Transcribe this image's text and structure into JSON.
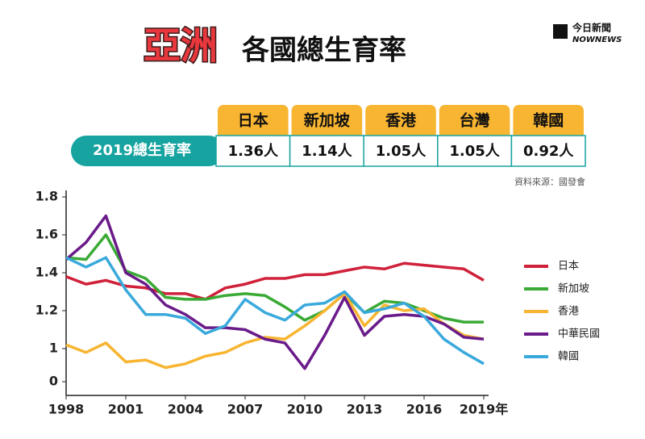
{
  "title_highlight": "亞洲",
  "title_rest": "各國總生育率",
  "logo": {
    "name": "今日新聞",
    "brand": "NOWNEWS"
  },
  "table": {
    "row_label": "2019總生育率",
    "columns": [
      "日本",
      "新加坡",
      "香港",
      "台灣",
      "韓國"
    ],
    "values": [
      "1.36人",
      "1.14人",
      "1.05人",
      "1.05人",
      "0.92人"
    ]
  },
  "source": "資料來源：國發會",
  "chart_data": {
    "type": "line",
    "x": [
      1998,
      1999,
      2000,
      2001,
      2002,
      2003,
      2004,
      2005,
      2006,
      2007,
      2008,
      2009,
      2010,
      2011,
      2012,
      2013,
      2014,
      2015,
      2016,
      2017,
      2018,
      2019
    ],
    "series": [
      {
        "name": "日本",
        "color": "#d0213a",
        "values": [
          1.38,
          1.34,
          1.36,
          1.33,
          1.32,
          1.29,
          1.29,
          1.26,
          1.32,
          1.34,
          1.37,
          1.37,
          1.39,
          1.39,
          1.41,
          1.43,
          1.42,
          1.45,
          1.44,
          1.43,
          1.42,
          1.36
        ]
      },
      {
        "name": "新加坡",
        "color": "#3aaa35",
        "values": [
          1.48,
          1.47,
          1.6,
          1.41,
          1.37,
          1.27,
          1.26,
          1.26,
          1.28,
          1.29,
          1.28,
          1.22,
          1.15,
          1.2,
          1.29,
          1.19,
          1.25,
          1.24,
          1.2,
          1.16,
          1.14,
          1.14
        ]
      },
      {
        "name": "香港",
        "color": "#f7b531",
        "values": [
          1.02,
          0.98,
          1.03,
          0.93,
          0.94,
          0.9,
          0.92,
          0.96,
          0.98,
          1.03,
          1.06,
          1.05,
          1.12,
          1.2,
          1.29,
          1.12,
          1.23,
          1.2,
          1.21,
          1.13,
          1.07,
          1.05
        ]
      },
      {
        "name": "中華民國",
        "color": "#6a1b8a",
        "values": [
          1.47,
          1.56,
          1.7,
          1.4,
          1.34,
          1.23,
          1.18,
          1.11,
          1.11,
          1.1,
          1.05,
          1.03,
          0.895,
          1.07,
          1.27,
          1.07,
          1.17,
          1.18,
          1.17,
          1.13,
          1.06,
          1.05
        ]
      },
      {
        "name": "韓國",
        "color": "#3aa9dc",
        "values": [
          1.48,
          1.43,
          1.48,
          1.31,
          1.18,
          1.18,
          1.16,
          1.08,
          1.12,
          1.26,
          1.19,
          1.15,
          1.23,
          1.24,
          1.3,
          1.19,
          1.21,
          1.24,
          1.17,
          1.05,
          0.98,
          0.92
        ]
      }
    ],
    "xlim": [
      1998,
      2019
    ],
    "xticks": [
      1998,
      2001,
      2004,
      2007,
      2010,
      2013,
      2016,
      {
        "value": 2019,
        "label": "2019年"
      }
    ],
    "ylim": [
      0,
      1.8
    ],
    "y_break": [
      0,
      0.85
    ],
    "yticks": [
      0,
      1.0,
      1.2,
      1.4,
      1.6,
      1.8
    ],
    "legend": "right"
  }
}
